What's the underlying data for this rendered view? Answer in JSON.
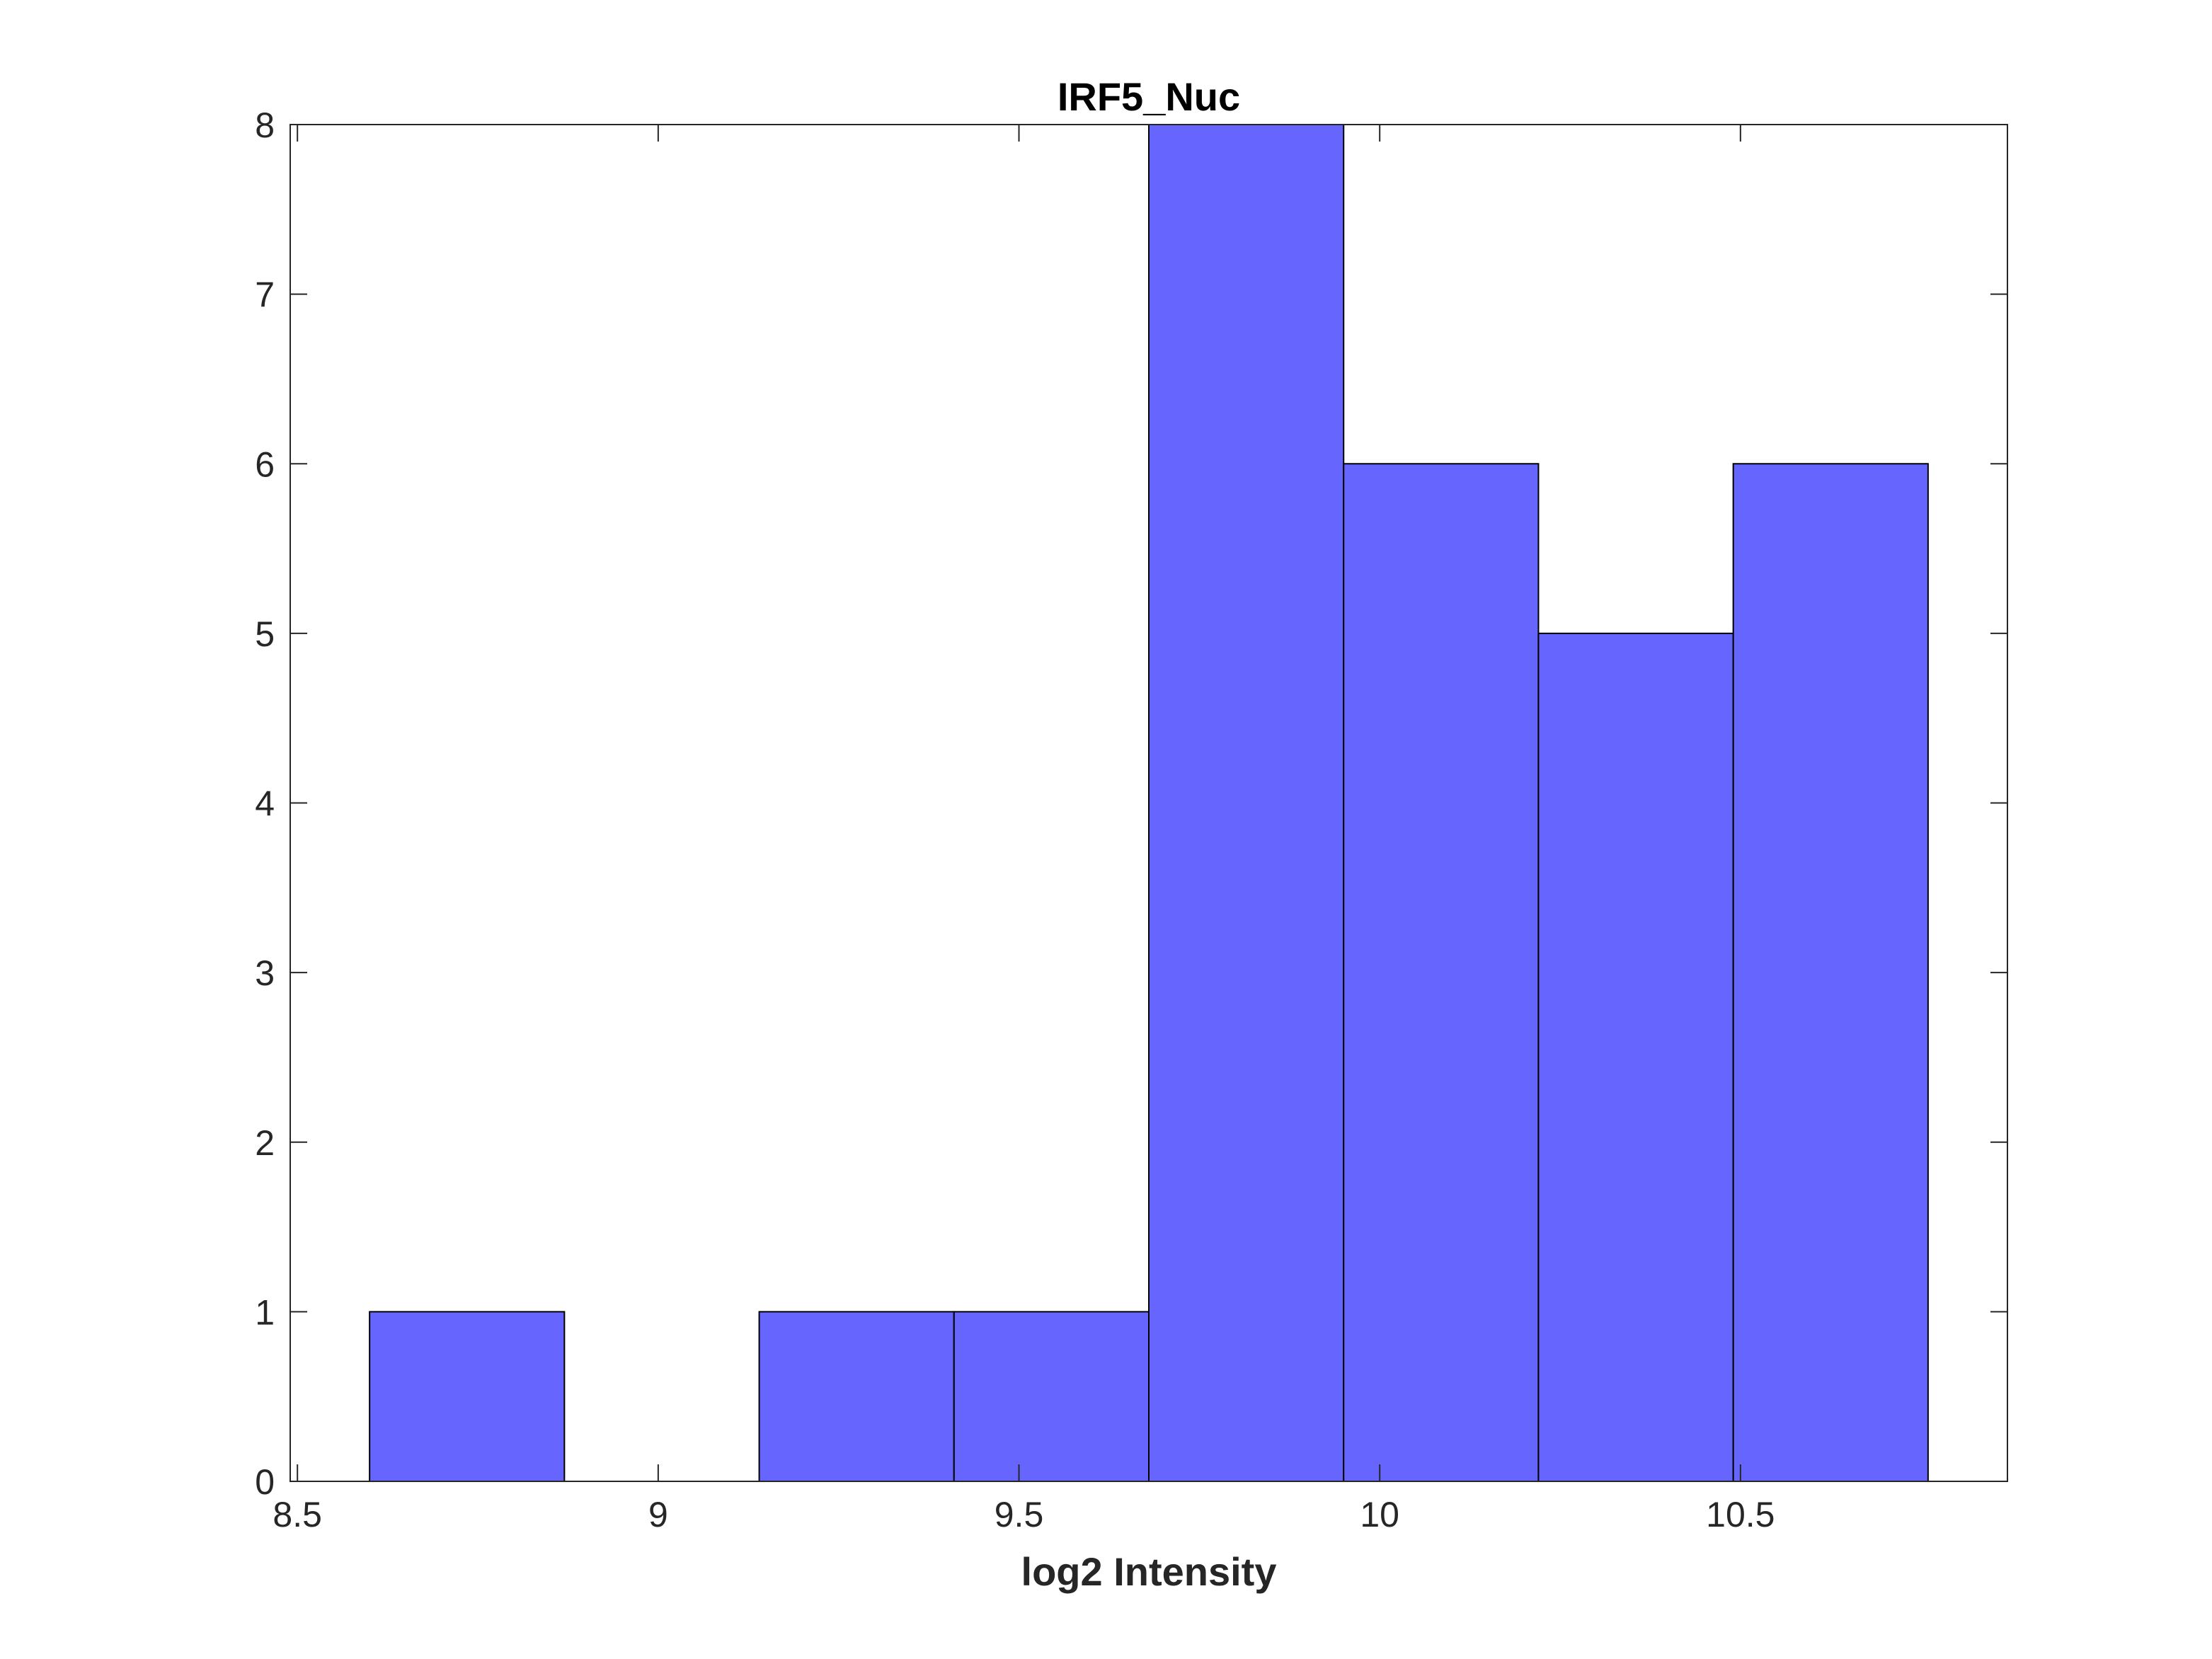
{
  "chart_data": {
    "type": "bar",
    "title": "IRF5_Nuc",
    "xlabel": "log2 Intensity",
    "ylabel": "",
    "xlim": [
      8.49,
      10.87
    ],
    "ylim": [
      0,
      8
    ],
    "xticks": [
      "8.5",
      "9",
      "9.5",
      "10",
      "10.5"
    ],
    "xtick_values": [
      8.5,
      9,
      9.5,
      10,
      10.5
    ],
    "yticks": [
      "0",
      "1",
      "2",
      "3",
      "4",
      "5",
      "6",
      "7",
      "8"
    ],
    "ytick_values": [
      0,
      1,
      2,
      3,
      4,
      5,
      6,
      7,
      8
    ],
    "bins": [
      {
        "x0": 8.6,
        "x1": 8.87,
        "value": 1
      },
      {
        "x0": 8.87,
        "x1": 9.14,
        "value": 0
      },
      {
        "x0": 9.14,
        "x1": 9.41,
        "value": 1
      },
      {
        "x0": 9.41,
        "x1": 9.68,
        "value": 1
      },
      {
        "x0": 9.68,
        "x1": 9.95,
        "value": 8
      },
      {
        "x0": 9.95,
        "x1": 10.22,
        "value": 6
      },
      {
        "x0": 10.22,
        "x1": 10.49,
        "value": 5
      },
      {
        "x0": 10.49,
        "x1": 10.76,
        "value": 6
      }
    ],
    "bar_color": "#6666ff",
    "edge_color": "#000000",
    "grid": false,
    "box": true
  }
}
